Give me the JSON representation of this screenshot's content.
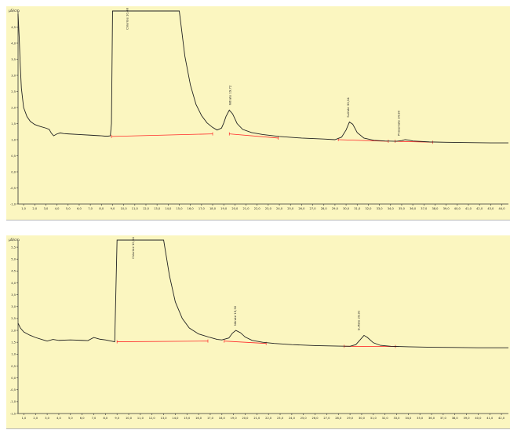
{
  "colors": {
    "background": "#fbf6c0",
    "signal": "#222222",
    "baseline": "#ff2a2a"
  },
  "chart_data": [
    {
      "type": "line",
      "ylabel": "µS/cm",
      "ylim": [
        -1.0,
        5.0
      ],
      "xlim": [
        0.5,
        44.6
      ],
      "y_ticks": [
        "-1,0",
        "-0,5",
        "0,0",
        "0,5",
        "1,0",
        "1,5",
        "2,0",
        "2,5",
        "3,0",
        "3,5",
        "4,0",
        "4,5"
      ],
      "x_ticks": [
        "1,0",
        "2,0",
        "3,0",
        "4,0",
        "5,0",
        "6,0",
        "7,0",
        "8,0",
        "9,0",
        "10,0",
        "11,0",
        "12,0",
        "13,0",
        "14,0",
        "15,0",
        "16,0",
        "17,0",
        "18,0",
        "19,0",
        "20,0",
        "21,0",
        "22,0",
        "23,0",
        "24,0",
        "25,0",
        "26,0",
        "27,0",
        "28,0",
        "29,0",
        "30,0",
        "31,0",
        "32,0",
        "33,0",
        "34,0",
        "35,0",
        "36,0",
        "37,0",
        "38,0",
        "39,0",
        "40,0",
        "41,0",
        "42,0",
        "43,0",
        "44,0"
      ],
      "series": [
        {
          "x": [
            0.5,
            0.6,
            0.7,
            0.8,
            1.0,
            1.3,
            1.6,
            2.0,
            2.5,
            3.0,
            3.3,
            3.5,
            3.7,
            4.0,
            4.3,
            4.6,
            5.0,
            6.0,
            7.0,
            8.0,
            8.3,
            8.6,
            8.8,
            8.9,
            9.0,
            15.0,
            15.5,
            16.0,
            16.5,
            17.0,
            17.5,
            18.0,
            18.4,
            18.8,
            19.0,
            19.2,
            19.5,
            19.8,
            20.2,
            20.7,
            21.5,
            22.5,
            24.0,
            26.0,
            28.0,
            29.0,
            29.6,
            30.0,
            30.3,
            30.6,
            31.0,
            31.6,
            32.5,
            33.5,
            34.5,
            35.0,
            35.3,
            35.6,
            36.0,
            36.5,
            37.5,
            39.0,
            41.0,
            43.0,
            44.6
          ],
          "y": [
            4.9,
            4.2,
            3.3,
            2.6,
            2.0,
            1.72,
            1.57,
            1.47,
            1.41,
            1.36,
            1.32,
            1.2,
            1.12,
            1.18,
            1.21,
            1.19,
            1.18,
            1.16,
            1.14,
            1.12,
            1.11,
            1.11,
            1.12,
            1.5,
            5.0,
            5.0,
            3.6,
            2.7,
            2.1,
            1.75,
            1.52,
            1.38,
            1.3,
            1.36,
            1.52,
            1.72,
            1.92,
            1.8,
            1.5,
            1.32,
            1.22,
            1.16,
            1.1,
            1.05,
            1.02,
            1.0,
            1.08,
            1.3,
            1.55,
            1.48,
            1.22,
            1.05,
            0.98,
            0.96,
            0.95,
            0.97,
            1.0,
            0.99,
            0.96,
            0.95,
            0.93,
            0.92,
            0.91,
            0.9,
            0.9
          ]
        }
      ],
      "peaks": [
        {
          "label": "Chloride 10,48",
          "x": 10.48,
          "y": 4.9
        },
        {
          "label": "Nitrate 19,72",
          "x": 19.72,
          "y": 2.0
        },
        {
          "label": "Sulfate 30,34",
          "x": 30.34,
          "y": 1.62
        },
        {
          "label": "Phosphate 34,90",
          "x": 34.9,
          "y": 1.05
        }
      ],
      "baselines": [
        [
          [
            8.9,
            1.1
          ],
          [
            18.0,
            1.18
          ]
        ],
        [
          [
            19.5,
            1.18
          ],
          [
            23.9,
            1.05
          ]
        ],
        [
          [
            29.3,
            1.0
          ],
          [
            33.8,
            0.95
          ]
        ],
        [
          [
            34.4,
            0.95
          ],
          [
            37.8,
            0.92
          ]
        ]
      ]
    },
    {
      "type": "line",
      "ylabel": "µS/cm",
      "ylim": [
        -1.5,
        5.8
      ],
      "xlim": [
        0.5,
        42.6
      ],
      "y_ticks": [
        "-1,5",
        "-1,0",
        "-0,5",
        "0,0",
        "0,5",
        "1,0",
        "1,5",
        "2,0",
        "2,5",
        "3,0",
        "3,5",
        "4,0",
        "4,5",
        "5,0",
        "5,5"
      ],
      "x_ticks": [
        "1,0",
        "2,0",
        "3,0",
        "4,0",
        "5,0",
        "6,0",
        "7,0",
        "8,0",
        "9,0",
        "10,0",
        "11,0",
        "12,0",
        "13,0",
        "14,0",
        "15,0",
        "16,0",
        "17,0",
        "18,0",
        "19,0",
        "20,0",
        "21,0",
        "22,0",
        "23,0",
        "24,0",
        "25,0",
        "26,0",
        "27,0",
        "28,0",
        "29,0",
        "30,0",
        "31,0",
        "32,0",
        "33,0",
        "34,0",
        "35,0",
        "36,0",
        "37,0",
        "38,0",
        "39,0",
        "40,0",
        "41,0",
        "42,0"
      ],
      "series": [
        {
          "x": [
            0.5,
            0.7,
            1.0,
            1.5,
            2.0,
            2.8,
            3.0,
            3.5,
            4.0,
            5.0,
            6.0,
            6.5,
            7.0,
            7.5,
            8.0,
            8.5,
            8.8,
            9.0,
            13.0,
            13.5,
            14.0,
            14.6,
            15.2,
            16.0,
            17.0,
            17.6,
            18.0,
            18.6,
            18.9,
            19.2,
            19.6,
            20.0,
            20.6,
            21.5,
            22.5,
            24.0,
            26.0,
            28.0,
            29.0,
            29.5,
            29.9,
            30.2,
            30.5,
            31.0,
            31.6,
            32.5,
            34.0,
            36.0,
            38.0,
            40.0,
            42.6
          ],
          "y": [
            2.3,
            2.1,
            1.93,
            1.8,
            1.7,
            1.58,
            1.55,
            1.62,
            1.58,
            1.6,
            1.58,
            1.57,
            1.7,
            1.63,
            1.6,
            1.55,
            1.52,
            5.8,
            5.8,
            4.3,
            3.2,
            2.5,
            2.1,
            1.85,
            1.7,
            1.62,
            1.6,
            1.68,
            1.88,
            2.0,
            1.9,
            1.72,
            1.58,
            1.5,
            1.45,
            1.4,
            1.36,
            1.34,
            1.33,
            1.4,
            1.62,
            1.79,
            1.7,
            1.48,
            1.37,
            1.33,
            1.31,
            1.29,
            1.28,
            1.27,
            1.27
          ]
        }
      ],
      "peaks": [
        {
          "label": "Chloride 10,54",
          "x": 10.54,
          "y": 5.7
        },
        {
          "label": "Nitrate 19,30",
          "x": 19.3,
          "y": 2.1
        },
        {
          "label": "Sulfate 29,91",
          "x": 29.91,
          "y": 1.9
        }
      ],
      "baselines": [
        [
          [
            9.0,
            1.52
          ],
          [
            16.8,
            1.55
          ]
        ],
        [
          [
            18.2,
            1.55
          ],
          [
            21.8,
            1.45
          ]
        ],
        [
          [
            28.5,
            1.33
          ],
          [
            32.9,
            1.32
          ]
        ]
      ]
    }
  ]
}
